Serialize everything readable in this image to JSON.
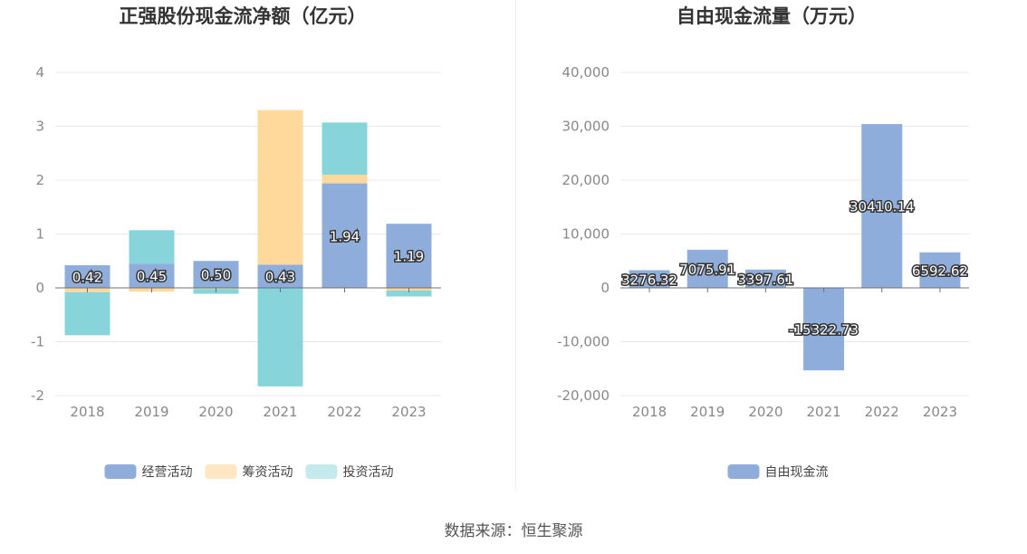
{
  "source": "数据来源：恒生聚源",
  "chart_data": [
    {
      "type": "bar",
      "stacked": true,
      "title": "正强股份现金流净额（亿元）",
      "categories": [
        "2018",
        "2019",
        "2020",
        "2021",
        "2022",
        "2023"
      ],
      "ylim": [
        -2,
        4
      ],
      "yticks": [
        "-2",
        "-1",
        "0",
        "1",
        "2",
        "3",
        "4"
      ],
      "series": [
        {
          "name": "经营活动",
          "color": "#8eaddb",
          "values": [
            0.42,
            0.45,
            0.5,
            0.43,
            1.94,
            1.19
          ],
          "labels": [
            "0.42",
            "0.45",
            "0.50",
            "0.43",
            "1.94",
            "1.19"
          ]
        },
        {
          "name": "筹资活动",
          "color": "#ffd89c",
          "values": [
            -0.08,
            -0.07,
            -0.02,
            2.87,
            0.16,
            -0.05
          ]
        },
        {
          "name": "投资活动",
          "color": "#87d5da",
          "values": [
            -0.8,
            0.62,
            -0.09,
            -1.83,
            0.97,
            -0.11
          ]
        }
      ],
      "legend_colors": [
        "#8eaddb",
        "#ffe7c3",
        "#c4eaed"
      ],
      "grid": true,
      "legend": "bottom"
    },
    {
      "type": "bar",
      "title": "自由现金流量（万元）",
      "categories": [
        "2018",
        "2019",
        "2020",
        "2021",
        "2022",
        "2023"
      ],
      "ylim": [
        -20000,
        40000
      ],
      "yticks": [
        "-20,000",
        "-10,000",
        "0",
        "10,000",
        "20,000",
        "30,000",
        "40,000"
      ],
      "series": [
        {
          "name": "自由现金流",
          "color": "#8eaddb",
          "values": [
            3276.32,
            7075.91,
            3397.61,
            -15322.73,
            30410.14,
            6592.62
          ],
          "labels": [
            "3276.32",
            "7075.91",
            "3397.61",
            "-15322.73",
            "30410.14",
            "6592.62"
          ]
        }
      ],
      "legend_colors": [
        "#8eaddb"
      ],
      "grid": true,
      "legend": "bottom"
    }
  ]
}
